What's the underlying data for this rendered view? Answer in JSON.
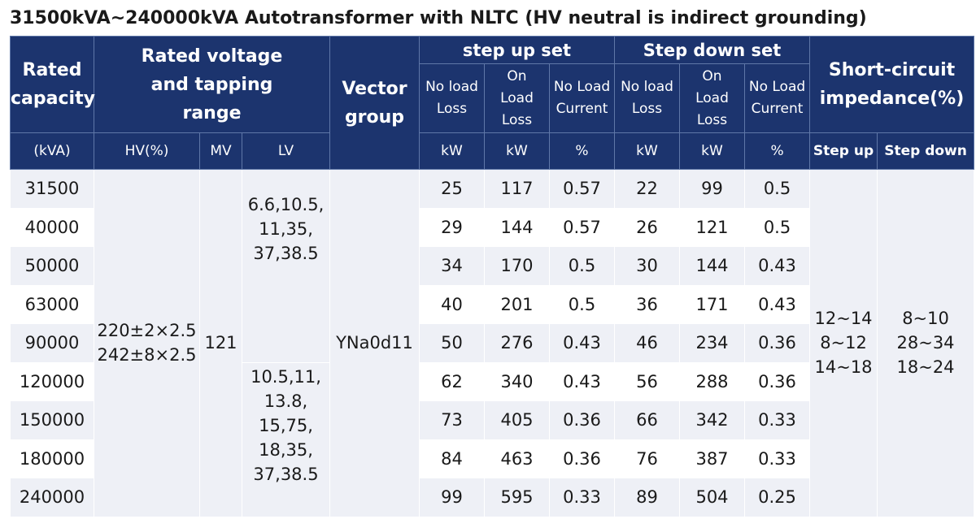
{
  "title": "31500kVA~240000kVA Autotransformer with NLTC (HV neutral is indirect grounding)",
  "header": {
    "rated_capacity": "Rated capacity",
    "rated_voltage": "Rated voltage and tapping range",
    "vector_group": "Vector group",
    "step_up_set": "step up set",
    "step_down_set": "Step down set",
    "short_circuit": "Short-circuit impedance(%)",
    "no_load_loss": "No load Loss",
    "on_load_loss": "On Load Loss",
    "no_load_current": "No Load Current",
    "units": {
      "capacity": "(kVA)",
      "hv": "HV(%)",
      "mv": "MV",
      "lv": "LV",
      "su_nll": "kW",
      "su_oll": "kW",
      "su_nlc": "%",
      "sd_nll": "kW",
      "sd_oll": "kW",
      "sd_nlc": "%",
      "imp_up": "Step up",
      "imp_down": "Step down"
    }
  },
  "merged": {
    "hv": "220±2×2.5\n242±8×2.5",
    "mv": "121",
    "lv_top": "6.6,10.5,\n11,35,\n37,38.5",
    "lv_bottom": "10.5,11,\n13.8,\n15,75,\n18,35,\n37,38.5",
    "vector_group": "YNa0d11",
    "imp_up": "12~14\n8~12\n14~18",
    "imp_down": "8~10\n28~34\n18~24"
  },
  "rows": [
    {
      "capacity": "31500",
      "su_nll": "25",
      "su_oll": "117",
      "su_nlc": "0.57",
      "sd_nll": "22",
      "sd_oll": "99",
      "sd_nlc": "0.5"
    },
    {
      "capacity": "40000",
      "su_nll": "29",
      "su_oll": "144",
      "su_nlc": "0.57",
      "sd_nll": "26",
      "sd_oll": "121",
      "sd_nlc": "0.5"
    },
    {
      "capacity": "50000",
      "su_nll": "34",
      "su_oll": "170",
      "su_nlc": "0.5",
      "sd_nll": "30",
      "sd_oll": "144",
      "sd_nlc": "0.43"
    },
    {
      "capacity": "63000",
      "su_nll": "40",
      "su_oll": "201",
      "su_nlc": "0.5",
      "sd_nll": "36",
      "sd_oll": "171",
      "sd_nlc": "0.43"
    },
    {
      "capacity": "90000",
      "su_nll": "50",
      "su_oll": "276",
      "su_nlc": "0.43",
      "sd_nll": "46",
      "sd_oll": "234",
      "sd_nlc": "0.36"
    },
    {
      "capacity": "120000",
      "su_nll": "62",
      "su_oll": "340",
      "su_nlc": "0.43",
      "sd_nll": "56",
      "sd_oll": "288",
      "sd_nlc": "0.36"
    },
    {
      "capacity": "150000",
      "su_nll": "73",
      "su_oll": "405",
      "su_nlc": "0.36",
      "sd_nll": "66",
      "sd_oll": "342",
      "sd_nlc": "0.33"
    },
    {
      "capacity": "180000",
      "su_nll": "84",
      "su_oll": "463",
      "su_nlc": "0.36",
      "sd_nll": "76",
      "sd_oll": "387",
      "sd_nlc": "0.33"
    },
    {
      "capacity": "240000",
      "su_nll": "99",
      "su_oll": "595",
      "su_nlc": "0.33",
      "sd_nll": "89",
      "sd_oll": "504",
      "sd_nlc": "0.25"
    }
  ],
  "colors": {
    "header_bg": "#1c346e",
    "header_text": "#ffffff",
    "stripe": "#eef0f6"
  }
}
